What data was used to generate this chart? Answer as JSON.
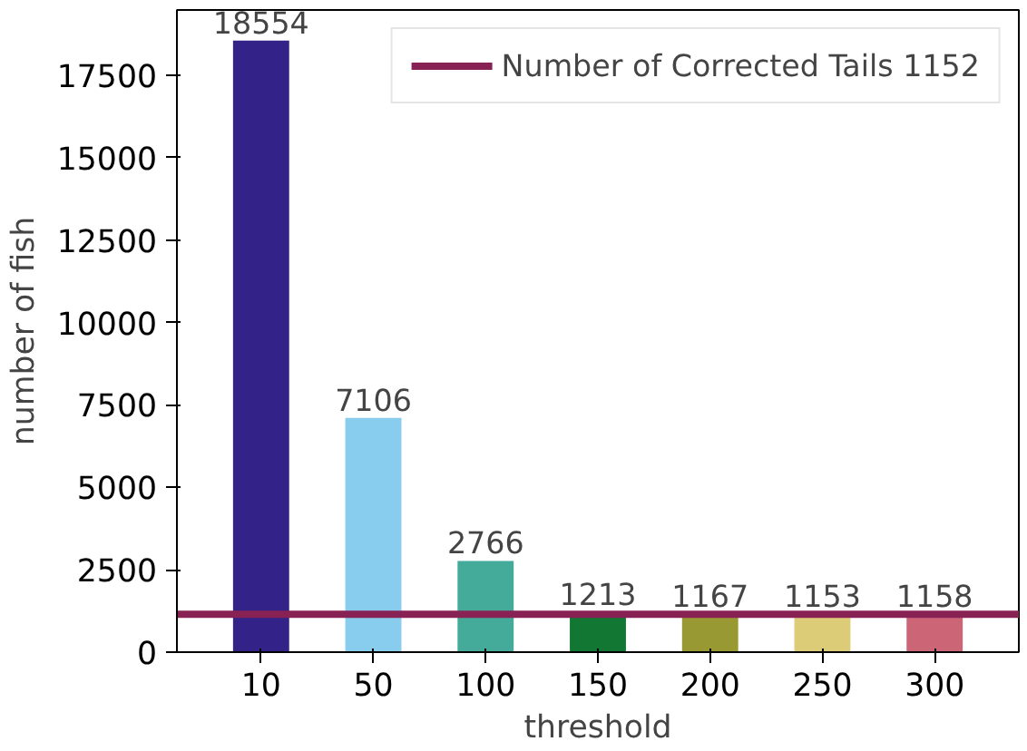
{
  "chart_data": {
    "type": "bar",
    "xlabel": "threshold",
    "ylabel": "number of fish",
    "categories": [
      "10",
      "50",
      "100",
      "150",
      "200",
      "250",
      "300"
    ],
    "values": [
      18554,
      7106,
      2766,
      1213,
      1167,
      1153,
      1158
    ],
    "colors": [
      "#332288",
      "#88ccee",
      "#44aa99",
      "#117733",
      "#999933",
      "#ddcc77",
      "#cc6677"
    ],
    "ylim": [
      0,
      19482
    ],
    "yticks": [
      0,
      2500,
      5000,
      7500,
      10000,
      12500,
      15000,
      17500
    ],
    "data_labels": true,
    "grid": false,
    "legend": "top right",
    "ref_lines": [
      {
        "axis": "y",
        "value": 1152,
        "label": "Number of Corrected Tails 1152",
        "color": "#882255",
        "line_style": "solid"
      }
    ]
  }
}
